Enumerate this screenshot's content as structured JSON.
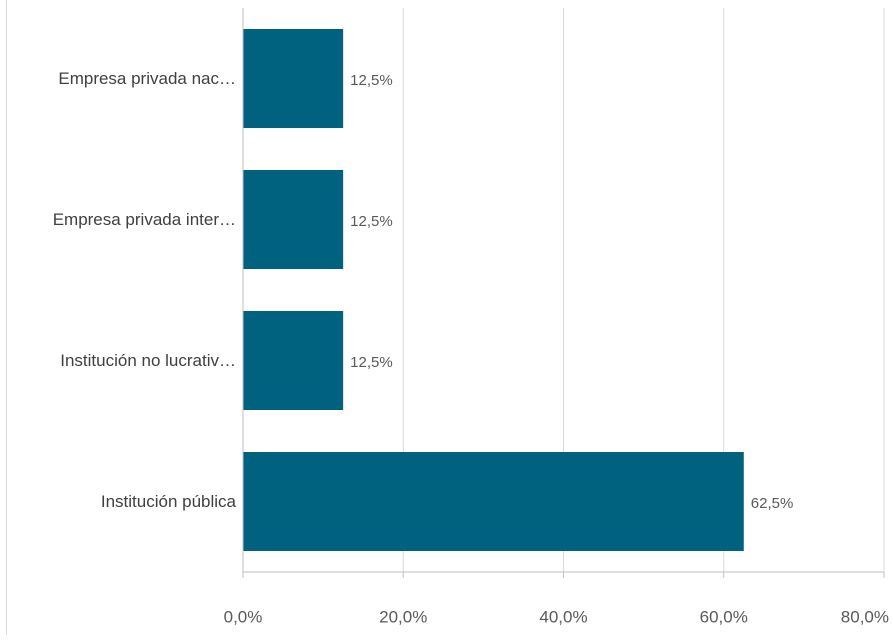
{
  "chart_data": {
    "type": "bar",
    "orientation": "horizontal",
    "categories": [
      "Empresa  privada nac…",
      "Empresa privada inter…",
      "Institución no lucrativ…",
      "Institución pública"
    ],
    "values": [
      12.5,
      12.5,
      12.5,
      62.5
    ],
    "value_labels": [
      "12,5%",
      "12,5%",
      "12,5%",
      "62,5%"
    ],
    "xlim": [
      0,
      80
    ],
    "x_ticks": [
      0,
      20,
      40,
      60,
      80
    ],
    "x_tick_labels": [
      "0,0%",
      "20,0%",
      "40,0%",
      "60,0%",
      "80,0%"
    ],
    "title": "",
    "xlabel": "",
    "ylabel": "",
    "grid": "vertical",
    "legend": "none",
    "colors": {
      "bar": "#00627f",
      "grid": "#d9d9d9",
      "axis": "#bfbfbf",
      "category_label": "#404040",
      "tick_label": "#595959",
      "value_label": "#595959"
    }
  }
}
